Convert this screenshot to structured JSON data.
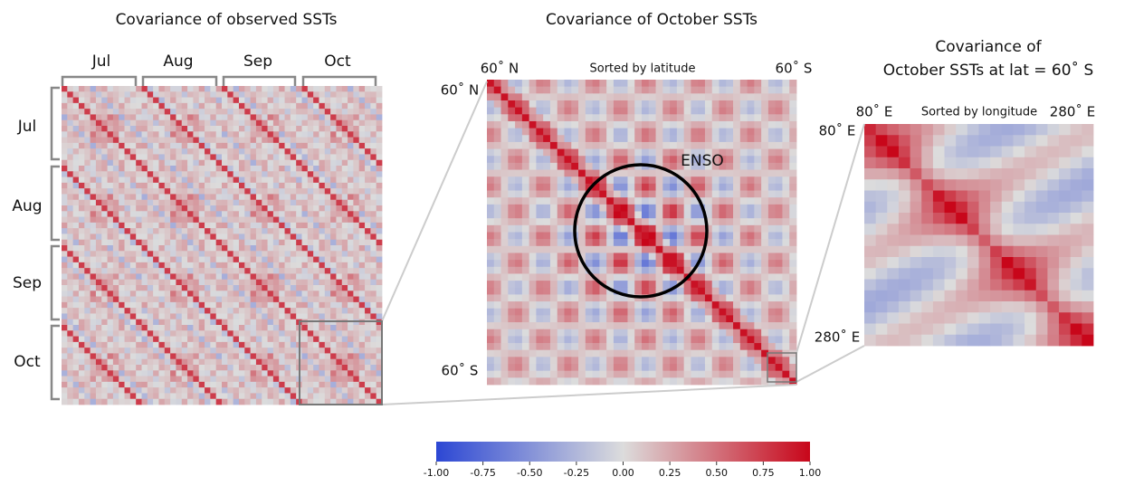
{
  "panels": [
    {
      "title": "Covariance of observed SSTs",
      "columns": [
        "Jul",
        "Aug",
        "Sep",
        "Oct"
      ],
      "rows": [
        "Jul",
        "Aug",
        "Sep",
        "Oct"
      ]
    },
    {
      "title": "Covariance of October SSTs",
      "subtitle": "Sorted by latitude",
      "top_left": "60˚ N",
      "top_right": "60˚ S",
      "left_top": "60˚ N",
      "left_bottom": "60˚ S",
      "annotation": "ENSO"
    },
    {
      "title_lines": [
        "Covariance of",
        "October SSTs at lat = 60˚ S"
      ],
      "subtitle": "Sorted by longitude",
      "top_left": "80˚ E",
      "top_right": "280˚ E",
      "left_top": "80˚ E",
      "left_bottom": "280˚ E"
    }
  ],
  "colorbar": {
    "colormap": [
      "#2c47d4",
      "#dcdcdc",
      "#c8061a"
    ],
    "range": [
      -1,
      1
    ],
    "ticks": [
      {
        "value": -1,
        "label": "-1.00"
      },
      {
        "value": -0.75,
        "label": "-0.75"
      },
      {
        "value": -0.5,
        "label": "-0.50"
      },
      {
        "value": -0.25,
        "label": "-0.25"
      },
      {
        "value": 0,
        "label": "0.00"
      },
      {
        "value": 0.25,
        "label": "0.25"
      },
      {
        "value": 0.5,
        "label": "0.50"
      },
      {
        "value": 0.75,
        "label": "0.75"
      },
      {
        "value": 1,
        "label": "1.00"
      }
    ]
  }
}
